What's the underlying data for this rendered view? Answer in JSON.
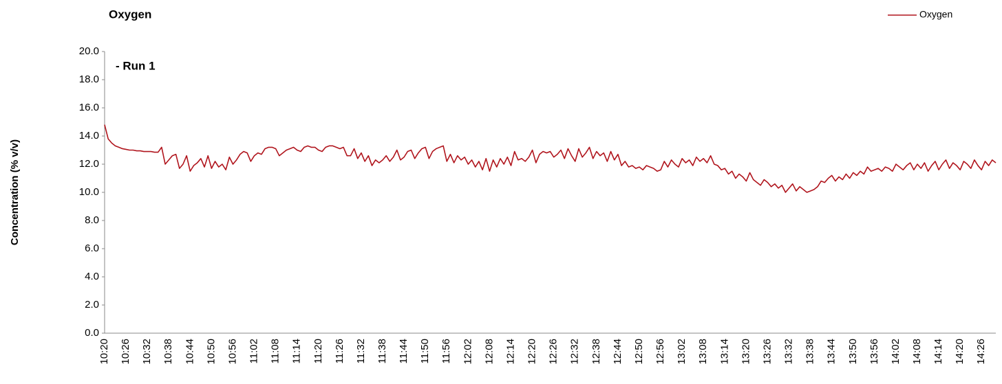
{
  "chart_data": {
    "type": "line",
    "title": "Oxygen",
    "annotation": "- Run 1",
    "y_label": "Concentration (% v/v)",
    "categories": [
      "10:20",
      null,
      null,
      null,
      null,
      null,
      "10:26",
      null,
      null,
      null,
      null,
      null,
      "10:32",
      null,
      null,
      null,
      null,
      null,
      "10:38",
      null,
      null,
      null,
      null,
      null,
      "10:44",
      null,
      null,
      null,
      null,
      null,
      "10:50",
      null,
      null,
      null,
      null,
      null,
      "10:56",
      null,
      null,
      null,
      null,
      null,
      "11:02",
      null,
      null,
      null,
      null,
      null,
      "11:08",
      null,
      null,
      null,
      null,
      null,
      "11:14",
      null,
      null,
      null,
      null,
      null,
      "11:20",
      null,
      null,
      null,
      null,
      null,
      "11:26",
      null,
      null,
      null,
      null,
      null,
      "11:32",
      null,
      null,
      null,
      null,
      null,
      "11:38",
      null,
      null,
      null,
      null,
      null,
      "11:44",
      null,
      null,
      null,
      null,
      null,
      "11:50",
      null,
      null,
      null,
      null,
      null,
      "11:56",
      null,
      null,
      null,
      null,
      null,
      "12:02",
      null,
      null,
      null,
      null,
      null,
      "12:08",
      null,
      null,
      null,
      null,
      null,
      "12:14",
      null,
      null,
      null,
      null,
      null,
      "12:20",
      null,
      null,
      null,
      null,
      null,
      "12:26",
      null,
      null,
      null,
      null,
      null,
      "12:32",
      null,
      null,
      null,
      null,
      null,
      "12:38",
      null,
      null,
      null,
      null,
      null,
      "12:44",
      null,
      null,
      null,
      null,
      null,
      "12:50",
      null,
      null,
      null,
      null,
      null,
      "12:56",
      null,
      null,
      null,
      null,
      null,
      "13:02",
      null,
      null,
      null,
      null,
      null,
      "13:08",
      null,
      null,
      null,
      null,
      null,
      "13:14",
      null,
      null,
      null,
      null,
      null,
      "13:20",
      null,
      null,
      null,
      null,
      null,
      "13:26",
      null,
      null,
      null,
      null,
      null,
      "13:32",
      null,
      null,
      null,
      null,
      null,
      "13:38",
      null,
      null,
      null,
      null,
      null,
      "13:44",
      null,
      null,
      null,
      null,
      null,
      "13:50",
      null,
      null,
      null,
      null,
      null,
      "13:56",
      null,
      null,
      null,
      null,
      null,
      "14:02",
      null,
      null,
      null,
      null,
      null,
      "14:08",
      null,
      null,
      null,
      null,
      null,
      "14:14",
      null,
      null,
      null,
      null,
      null,
      "14:20",
      null,
      null,
      null,
      null,
      null,
      "14:26",
      null,
      null,
      null,
      null
    ],
    "series": [
      {
        "name": "Oxygen",
        "color": "#b0141c",
        "values": [
          14.8,
          13.8,
          13.5,
          13.3,
          13.2,
          13.1,
          13.05,
          13.0,
          13.0,
          12.95,
          12.95,
          12.9,
          12.9,
          12.9,
          12.85,
          12.85,
          13.2,
          12.0,
          12.3,
          12.6,
          12.7,
          11.7,
          12.0,
          12.6,
          11.5,
          11.9,
          12.1,
          12.4,
          11.8,
          12.6,
          11.7,
          12.2,
          11.8,
          12.0,
          11.6,
          12.5,
          12.0,
          12.3,
          12.7,
          12.9,
          12.8,
          12.2,
          12.6,
          12.8,
          12.7,
          13.1,
          13.2,
          13.2,
          13.1,
          12.6,
          12.8,
          13.0,
          13.1,
          13.2,
          13.0,
          12.9,
          13.2,
          13.3,
          13.2,
          13.2,
          13.0,
          12.9,
          13.2,
          13.3,
          13.3,
          13.2,
          13.1,
          13.2,
          12.6,
          12.6,
          13.1,
          12.4,
          12.8,
          12.2,
          12.6,
          11.9,
          12.3,
          12.1,
          12.3,
          12.6,
          12.2,
          12.5,
          13.0,
          12.3,
          12.5,
          12.9,
          13.0,
          12.4,
          12.8,
          13.1,
          13.2,
          12.4,
          12.9,
          13.1,
          13.2,
          13.3,
          12.2,
          12.7,
          12.1,
          12.6,
          12.3,
          12.5,
          12.0,
          12.3,
          11.8,
          12.2,
          11.6,
          12.4,
          11.5,
          12.3,
          11.8,
          12.4,
          12.0,
          12.5,
          11.9,
          12.9,
          12.3,
          12.4,
          12.2,
          12.5,
          13.0,
          12.1,
          12.7,
          12.9,
          12.8,
          12.9,
          12.5,
          12.7,
          13.0,
          12.4,
          13.1,
          12.6,
          12.2,
          13.1,
          12.5,
          12.8,
          13.2,
          12.4,
          12.9,
          12.6,
          12.8,
          12.2,
          12.9,
          12.3,
          12.7,
          11.9,
          12.2,
          11.8,
          11.9,
          11.7,
          11.8,
          11.6,
          11.9,
          11.8,
          11.7,
          11.5,
          11.6,
          12.2,
          11.8,
          12.3,
          12.0,
          11.8,
          12.4,
          12.1,
          12.3,
          11.9,
          12.5,
          12.2,
          12.4,
          12.1,
          12.6,
          12.0,
          11.9,
          11.6,
          11.7,
          11.3,
          11.5,
          11.0,
          11.3,
          11.1,
          10.8,
          11.4,
          10.9,
          10.7,
          10.5,
          10.9,
          10.7,
          10.4,
          10.6,
          10.3,
          10.5,
          10.0,
          10.3,
          10.6,
          10.1,
          10.4,
          10.2,
          10.0,
          10.1,
          10.2,
          10.4,
          10.8,
          10.7,
          11.0,
          11.2,
          10.8,
          11.1,
          10.9,
          11.3,
          11.0,
          11.4,
          11.2,
          11.5,
          11.3,
          11.8,
          11.5,
          11.6,
          11.7,
          11.5,
          11.8,
          11.7,
          11.5,
          12.0,
          11.8,
          11.6,
          11.9,
          12.1,
          11.6,
          12.0,
          11.7,
          12.1,
          11.5,
          11.9,
          12.2,
          11.6,
          12.0,
          12.3,
          11.7,
          12.1,
          11.9,
          11.6,
          12.2,
          12.0,
          11.7,
          12.3,
          11.9,
          11.6,
          12.2,
          11.9,
          12.3,
          12.1
        ]
      }
    ],
    "ylim": [
      0,
      20
    ],
    "yticks": [
      {
        "value": 0,
        "label": "0.0"
      },
      {
        "value": 2,
        "label": "2.0"
      },
      {
        "value": 4,
        "label": "4.0"
      },
      {
        "value": 6,
        "label": "6.0"
      },
      {
        "value": 8,
        "label": "8.0"
      },
      {
        "value": 10,
        "label": "10.0"
      },
      {
        "value": 12,
        "label": "12.0"
      },
      {
        "value": 14,
        "label": "14.0"
      },
      {
        "value": 16,
        "label": "16.0"
      },
      {
        "value": 18,
        "label": "18.0"
      },
      {
        "value": 20,
        "label": "20.0"
      }
    ],
    "legend": "top-right"
  }
}
